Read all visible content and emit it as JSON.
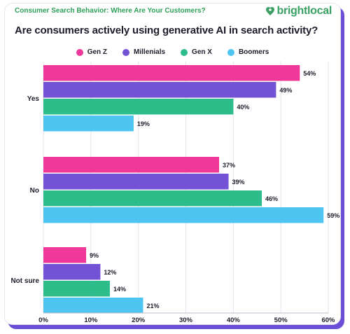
{
  "header": {
    "eyebrow": "Consumer Search Behavior: Where Are Your Customers?",
    "brand": "brightlocal",
    "brand_icon": "heart-pin-icon"
  },
  "colors": {
    "gen_z": "#f0389a",
    "millenials": "#7452d6",
    "gen_x": "#2dbd8b",
    "boomers": "#4ec4f0",
    "accent_green": "#3aa063",
    "frame_shadow": "#6a4fd6"
  },
  "chart_data": {
    "type": "bar",
    "orientation": "horizontal",
    "title": "Are consumers actively using generative AI in search activity?",
    "categories": [
      "Yes",
      "No",
      "Not sure"
    ],
    "series": [
      {
        "name": "Gen Z",
        "color": "#f0389a",
        "values": [
          54,
          37,
          9
        ]
      },
      {
        "name": "Millenials",
        "color": "#7452d6",
        "values": [
          49,
          39,
          12
        ]
      },
      {
        "name": "Gen X",
        "color": "#2dbd8b",
        "values": [
          40,
          46,
          14
        ]
      },
      {
        "name": "Boomers",
        "color": "#4ec4f0",
        "values": [
          19,
          59,
          21
        ]
      }
    ],
    "value_suffix": "%",
    "xlim": [
      0,
      60
    ],
    "xticks": [
      0,
      10,
      20,
      30,
      40,
      50,
      60
    ],
    "xtick_labels": [
      "0%",
      "10%",
      "20%",
      "30%",
      "40%",
      "50%",
      "60%"
    ],
    "grid": true,
    "legend_position": "top-center"
  }
}
